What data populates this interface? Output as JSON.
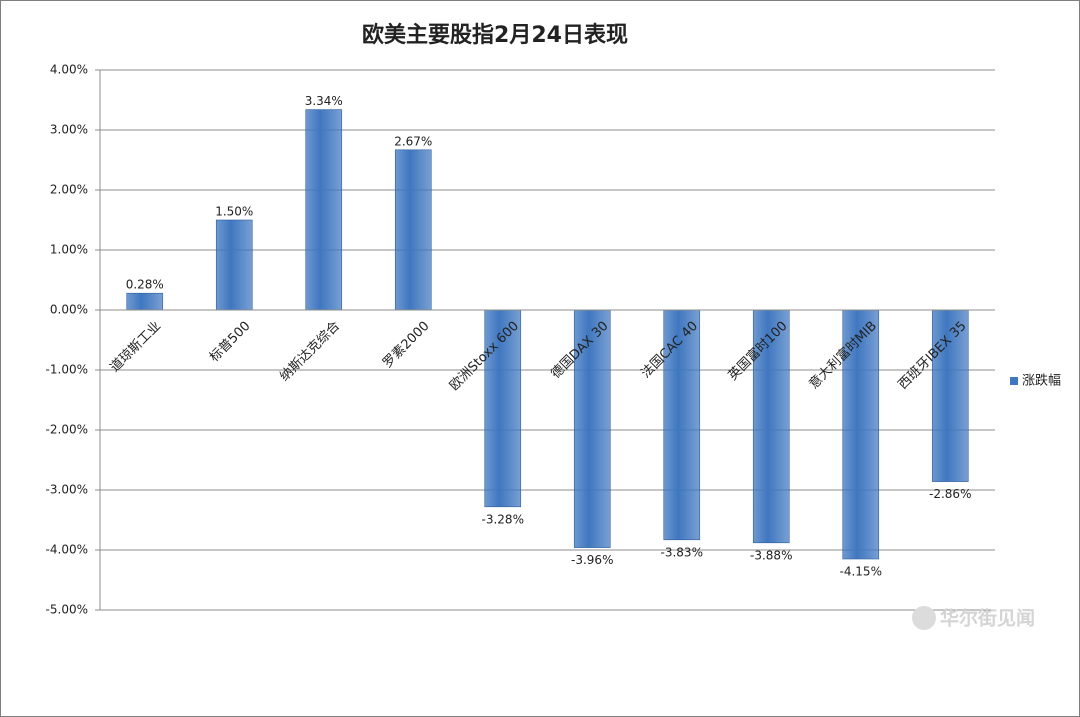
{
  "chart_data": {
    "type": "bar",
    "title": "欧美主要股指2月24日表现",
    "categories": [
      "道琼斯工业",
      "标普500",
      "纳斯达克综合",
      "罗素2000",
      "欧洲Stoxx 600",
      "德国DAX 30",
      "法国CAC 40",
      "英国富时100",
      "意大利富时MIB",
      "西班牙IBEX 35"
    ],
    "series": [
      {
        "name": "涨跌幅",
        "color": "#3f77c0",
        "values": [
          0.28,
          1.5,
          3.34,
          2.67,
          -3.28,
          -3.96,
          -3.83,
          -3.88,
          -4.15,
          -2.86
        ],
        "value_labels": [
          "0.28%",
          "1.50%",
          "3.34%",
          "2.67%",
          "-3.28%",
          "-3.96%",
          "-3.83%",
          "-3.88%",
          "-4.15%",
          "-2.86%"
        ]
      }
    ],
    "ylim": [
      -5,
      4
    ],
    "yticks": [
      {
        "value": -5,
        "label": "-5.00%"
      },
      {
        "value": -4,
        "label": "-4.00%"
      },
      {
        "value": -3,
        "label": "-3.00%"
      },
      {
        "value": -2,
        "label": "-2.00%"
      },
      {
        "value": -1,
        "label": "-1.00%"
      },
      {
        "value": 0,
        "label": "0.00%"
      },
      {
        "value": 1,
        "label": "1.00%"
      },
      {
        "value": 2,
        "label": "2.00%"
      },
      {
        "value": 3,
        "label": "3.00%"
      },
      {
        "value": 4,
        "label": "4.00%"
      }
    ],
    "grid": true,
    "legend": "right",
    "watermark": "华尔街见闻"
  }
}
